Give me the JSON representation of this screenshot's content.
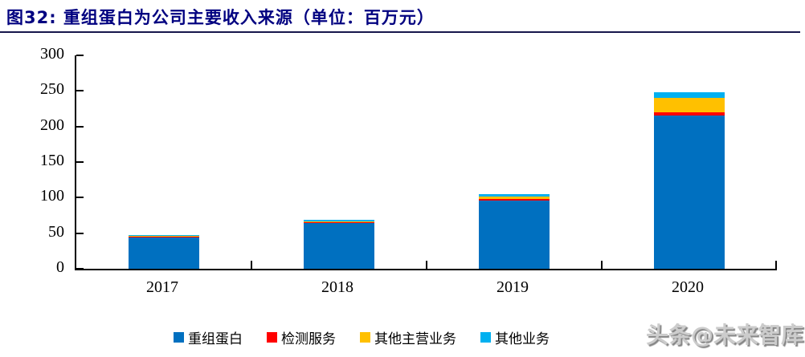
{
  "header": {
    "title": "图32:  重组蛋白为公司主要收入来源（单位：百万元）"
  },
  "watermark": {
    "text": "头条@未来智库"
  },
  "chart_data": {
    "type": "bar",
    "stacked": true,
    "title": "重组蛋白为公司主要收入来源",
    "unit": "百万元",
    "categories": [
      "2017",
      "2018",
      "2019",
      "2020"
    ],
    "series": [
      {
        "name": "重组蛋白",
        "color": "#0070C0",
        "values": [
          45,
          65,
          95.5,
          215
        ]
      },
      {
        "name": "检测服务",
        "color": "#FF0000",
        "values": [
          0.3,
          0.5,
          3,
          5.5
        ]
      },
      {
        "name": "其他主营业务",
        "color": "#FFC000",
        "values": [
          1.3,
          1.6,
          2.5,
          20
        ]
      },
      {
        "name": "其他业务",
        "color": "#00B0F0",
        "values": [
          0.7,
          1.2,
          3.5,
          7.5
        ]
      }
    ],
    "totals": [
      47.3,
      68.3,
      104.5,
      248
    ],
    "xlabel": "",
    "ylabel": "",
    "ylim": [
      0,
      300
    ],
    "yticks": [
      0,
      50,
      100,
      150,
      200,
      250,
      300
    ],
    "grid": false,
    "legend_position": "bottom"
  }
}
